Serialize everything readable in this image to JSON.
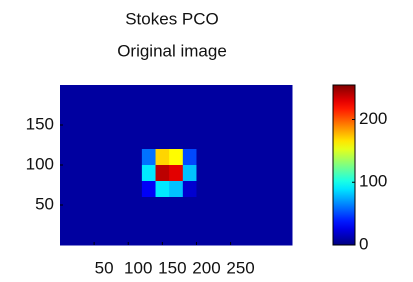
{
  "chart_data": {
    "type": "heatmap",
    "title": [
      "Stokes PCO",
      "Original image"
    ],
    "xlim": [
      0,
      340
    ],
    "ylim": [
      0,
      200
    ],
    "xticks": [
      50,
      100,
      150,
      200,
      250
    ],
    "yticks": [
      50,
      100,
      150
    ],
    "colormap": "jet",
    "clim": [
      0,
      255
    ],
    "cticks": [
      0,
      100,
      200
    ],
    "z": [
      [
        8,
        8,
        8,
        8,
        8,
        8,
        8,
        8,
        8,
        8,
        8,
        8,
        8,
        8,
        8,
        8,
        8
      ],
      [
        8,
        8,
        8,
        8,
        8,
        8,
        8,
        8,
        8,
        8,
        8,
        8,
        8,
        8,
        8,
        8,
        8
      ],
      [
        8,
        8,
        8,
        8,
        8,
        8,
        8,
        8,
        8,
        8,
        8,
        8,
        8,
        8,
        8,
        8,
        8
      ],
      [
        8,
        8,
        8,
        8,
        8,
        8,
        8,
        8,
        8,
        8,
        8,
        8,
        8,
        8,
        8,
        8,
        8
      ],
      [
        8,
        8,
        8,
        8,
        8,
        8,
        60,
        170,
        160,
        50,
        8,
        8,
        8,
        8,
        8,
        8,
        8
      ],
      [
        8,
        8,
        8,
        8,
        8,
        8,
        90,
        240,
        230,
        80,
        8,
        8,
        8,
        8,
        8,
        8,
        8
      ],
      [
        8,
        8,
        8,
        8,
        8,
        8,
        30,
        90,
        80,
        20,
        8,
        8,
        8,
        8,
        8,
        8,
        8
      ],
      [
        8,
        8,
        8,
        8,
        8,
        8,
        8,
        8,
        8,
        8,
        8,
        8,
        8,
        8,
        8,
        8,
        8
      ],
      [
        8,
        8,
        8,
        8,
        8,
        8,
        8,
        8,
        8,
        8,
        8,
        8,
        8,
        8,
        8,
        8,
        8
      ],
      [
        8,
        8,
        8,
        8,
        8,
        8,
        8,
        8,
        8,
        8,
        8,
        8,
        8,
        8,
        8,
        8,
        8
      ]
    ]
  }
}
